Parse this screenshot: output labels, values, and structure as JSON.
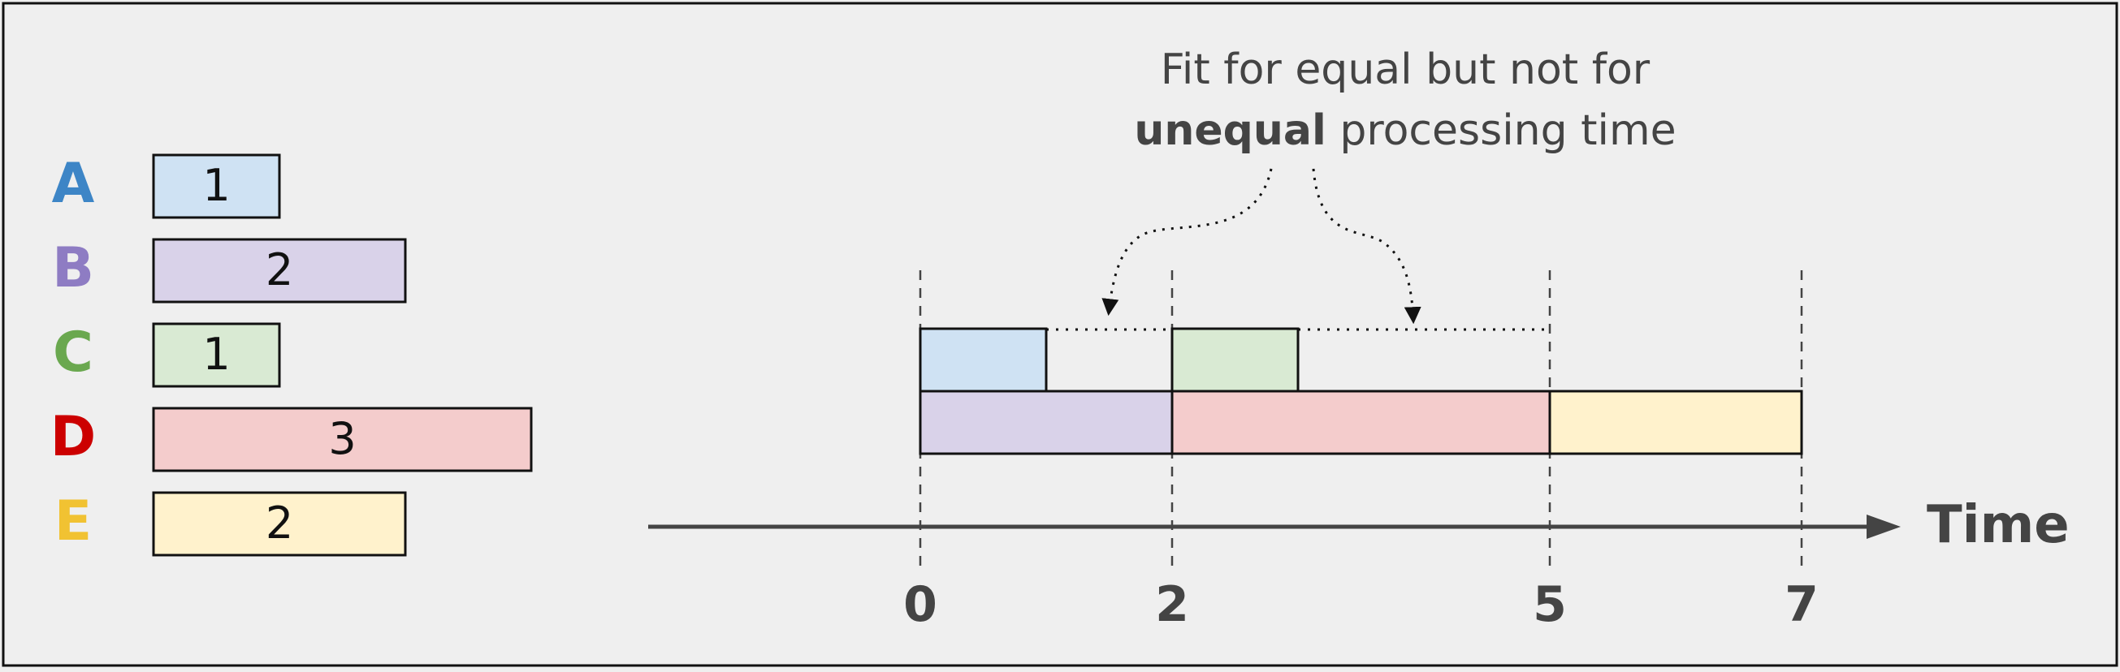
{
  "legend": {
    "items": [
      {
        "letter": "A",
        "duration": "1",
        "color": "#3d85c6",
        "fill": "#cfe2f3"
      },
      {
        "letter": "B",
        "duration": "2",
        "color": "#8e7cc3",
        "fill": "#d9d2e9"
      },
      {
        "letter": "C",
        "duration": "1",
        "color": "#6aa84f",
        "fill": "#d9ead3"
      },
      {
        "letter": "D",
        "duration": "3",
        "color": "#cc0000",
        "fill": "#f4cccc"
      },
      {
        "letter": "E",
        "duration": "2",
        "color": "#f1c232",
        "fill": "#fff2cc"
      }
    ]
  },
  "annotation": {
    "line1": "Fit for equal but not for",
    "line2_bold": "unequal",
    "line2_rest": " processing time"
  },
  "timeline": {
    "axis_label": "Time",
    "ticks": [
      "0",
      "2",
      "5",
      "7"
    ],
    "tick_values": [
      0,
      2,
      5,
      7
    ],
    "tasks": [
      {
        "task": "A",
        "row": 0,
        "start": 0,
        "end": 1
      },
      {
        "task": "C",
        "row": 0,
        "start": 2,
        "end": 3
      },
      {
        "task": "B",
        "row": 1,
        "start": 0,
        "end": 2
      },
      {
        "task": "D",
        "row": 1,
        "start": 2,
        "end": 5
      },
      {
        "task": "E",
        "row": 1,
        "start": 5,
        "end": 7
      }
    ],
    "gaps": [
      {
        "row": 0,
        "start": 1,
        "end": 2
      },
      {
        "row": 0,
        "start": 3,
        "end": 5
      }
    ]
  },
  "colors": {
    "stroke": "#111111",
    "axis": "#444444",
    "text": "#444444",
    "background": "#efefef"
  }
}
